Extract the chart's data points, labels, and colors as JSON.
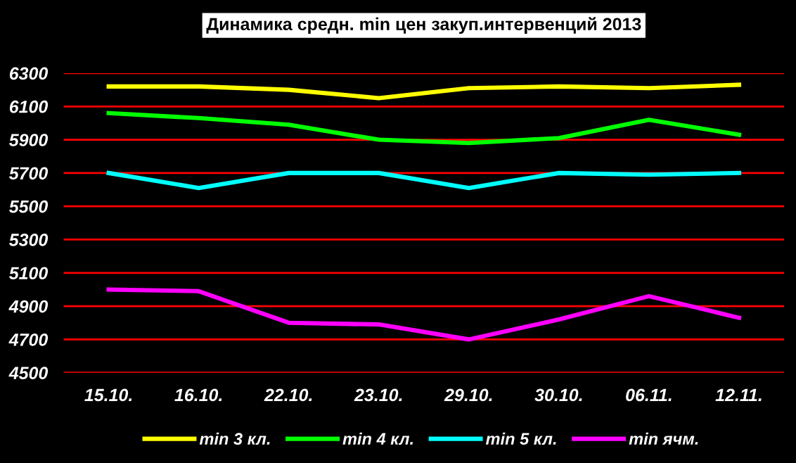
{
  "chart_data": {
    "type": "line",
    "title": "Динамика средн. min цен закуп.интервенций 2013",
    "categories": [
      "15.10.",
      "16.10.",
      "22.10.",
      "23.10.",
      "29.10.",
      "30.10.",
      "06.11.",
      "12.11."
    ],
    "series": [
      {
        "name": "min 3 кл.",
        "color": "#ffff00",
        "values": [
          6220,
          6220,
          6200,
          6150,
          6210,
          6220,
          6210,
          6230
        ]
      },
      {
        "name": "min 4 кл.",
        "color": "#00ff00",
        "values": [
          6060,
          6030,
          5990,
          5900,
          5880,
          5910,
          6020,
          5930
        ]
      },
      {
        "name": "min 5 кл.",
        "color": "#00ffff",
        "values": [
          5700,
          5610,
          5700,
          5700,
          5610,
          5700,
          5690,
          5700
        ]
      },
      {
        "name": "min ячм.",
        "color": "#ff00ff",
        "values": [
          5000,
          4990,
          4800,
          4790,
          4700,
          4820,
          4960,
          4830
        ]
      }
    ],
    "ylim": [
      4500,
      6300
    ],
    "yticks": [
      4500,
      4700,
      4900,
      5100,
      5300,
      5500,
      5700,
      5900,
      6100,
      6300
    ],
    "grid": "y",
    "legend": "bottom",
    "marker": "none",
    "line_style": "solid"
  }
}
